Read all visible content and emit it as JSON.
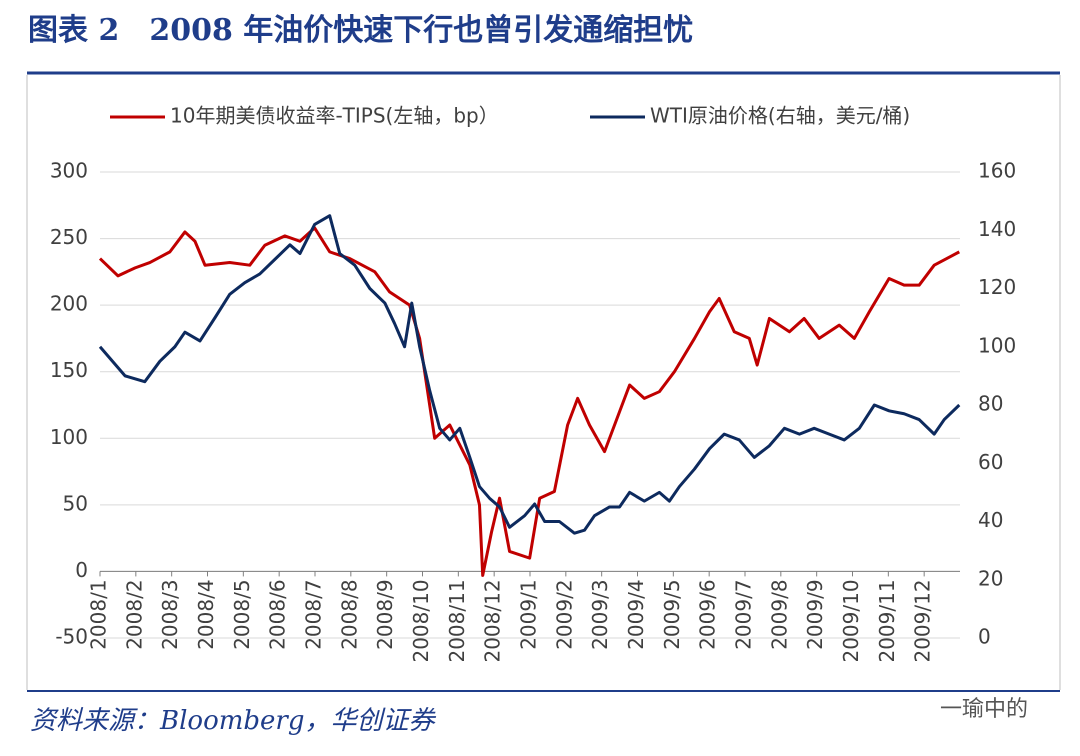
{
  "chart_data": {
    "type": "line",
    "title": "图表 2　2008 年油价快速下行也曾引发通缩担忧",
    "source": "资料来源：Bloomberg，华创证券",
    "watermark": "一瑜中的",
    "xlim": [
      0,
      24
    ],
    "xticks": [
      {
        "value": 0,
        "label": "2008/1"
      },
      {
        "value": 1,
        "label": "2008/2"
      },
      {
        "value": 2,
        "label": "2008/3"
      },
      {
        "value": 3,
        "label": "2008/4"
      },
      {
        "value": 4,
        "label": "2008/5"
      },
      {
        "value": 5,
        "label": "2008/6"
      },
      {
        "value": 6,
        "label": "2008/7"
      },
      {
        "value": 7,
        "label": "2008/8"
      },
      {
        "value": 8,
        "label": "2008/9"
      },
      {
        "value": 9,
        "label": "2008/10"
      },
      {
        "value": 10,
        "label": "2008/11"
      },
      {
        "value": 11,
        "label": "2008/12"
      },
      {
        "value": 12,
        "label": "2009/1"
      },
      {
        "value": 13,
        "label": "2009/2"
      },
      {
        "value": 14,
        "label": "2009/3"
      },
      {
        "value": 15,
        "label": "2009/4"
      },
      {
        "value": 16,
        "label": "2009/5"
      },
      {
        "value": 17,
        "label": "2009/6"
      },
      {
        "value": 18,
        "label": "2009/7"
      },
      {
        "value": 19,
        "label": "2009/8"
      },
      {
        "value": 20,
        "label": "2009/9"
      },
      {
        "value": 21,
        "label": "2009/10"
      },
      {
        "value": 22,
        "label": "2009/11"
      },
      {
        "value": 23,
        "label": "2009/12"
      }
    ],
    "ylim": [
      -50,
      300
    ],
    "yticks": [
      -50,
      0,
      50,
      100,
      150,
      200,
      250,
      300
    ],
    "y2lim": [
      0,
      160
    ],
    "y2ticks": [
      0,
      20,
      40,
      60,
      80,
      100,
      120,
      140,
      160
    ],
    "grid": true,
    "legend": "top",
    "series": [
      {
        "name": "10年期美债收益率-TIPS(左轴，bp）",
        "color": "#c00000",
        "x": [
          0,
          0.5,
          0.98,
          1.39,
          1.95,
          2.37,
          2.65,
          2.93,
          3.62,
          4.18,
          4.6,
          5.16,
          5.58,
          5.99,
          6.41,
          6.97,
          7.67,
          8.08,
          8.64,
          8.92,
          9.34,
          9.76,
          10.32,
          10.59,
          10.68,
          10.93,
          11.15,
          11.43,
          11.99,
          12.27,
          12.68,
          13.05,
          13.33,
          13.66,
          14.08,
          14.5,
          14.78,
          15.19,
          15.61,
          16.03,
          16.59,
          17.01,
          17.28,
          17.7,
          18.12,
          18.34,
          18.68,
          19.24,
          19.65,
          20.07,
          20.63,
          21.05,
          21.47,
          22.02,
          22.44,
          22.86,
          23.28,
          23.98
        ],
        "values": [
          235,
          222,
          228,
          232,
          240,
          255,
          248,
          230,
          232,
          230,
          245,
          252,
          248,
          258,
          240,
          235,
          225,
          210,
          200,
          175,
          100,
          110,
          80,
          50,
          -3,
          30,
          55,
          15,
          10,
          55,
          60,
          110,
          130,
          110,
          90,
          120,
          140,
          130,
          135,
          150,
          175,
          195,
          205,
          180,
          175,
          155,
          190,
          180,
          190,
          175,
          185,
          175,
          195,
          220,
          215,
          215,
          230,
          240
        ]
      },
      {
        "name": "WTI原油价格(右轴，美元/桶)",
        "color": "#0d2a5e",
        "axis": "y2",
        "x": [
          0,
          0.7,
          1.25,
          1.67,
          2.09,
          2.37,
          2.79,
          3.21,
          3.62,
          4.04,
          4.46,
          4.88,
          5.3,
          5.58,
          5.99,
          6.41,
          6.69,
          7.11,
          7.53,
          7.95,
          8.22,
          8.5,
          8.7,
          8.92,
          9.2,
          9.48,
          9.76,
          10.04,
          10.32,
          10.59,
          10.87,
          11.15,
          11.43,
          11.85,
          12.13,
          12.41,
          12.82,
          13.24,
          13.52,
          13.8,
          14.22,
          14.5,
          14.78,
          15.19,
          15.61,
          15.89,
          16.17,
          16.59,
          17.01,
          17.42,
          17.84,
          18.26,
          18.68,
          19.1,
          19.52,
          19.93,
          20.35,
          20.77,
          21.19,
          21.61,
          22.02,
          22.44,
          22.86,
          23.28,
          23.56,
          23.98
        ],
        "values": [
          100,
          90,
          88,
          95,
          100,
          105,
          102,
          110,
          118,
          122,
          125,
          130,
          135,
          132,
          142,
          145,
          132,
          128,
          120,
          115,
          108,
          100,
          115,
          100,
          85,
          72,
          68,
          72,
          62,
          52,
          48,
          45,
          38,
          42,
          46,
          40,
          40,
          36,
          37,
          42,
          45,
          45,
          50,
          47,
          50,
          47,
          52,
          58,
          65,
          70,
          68,
          62,
          66,
          72,
          70,
          72,
          70,
          68,
          72,
          80,
          78,
          77,
          75,
          70,
          75,
          80
        ]
      }
    ]
  }
}
